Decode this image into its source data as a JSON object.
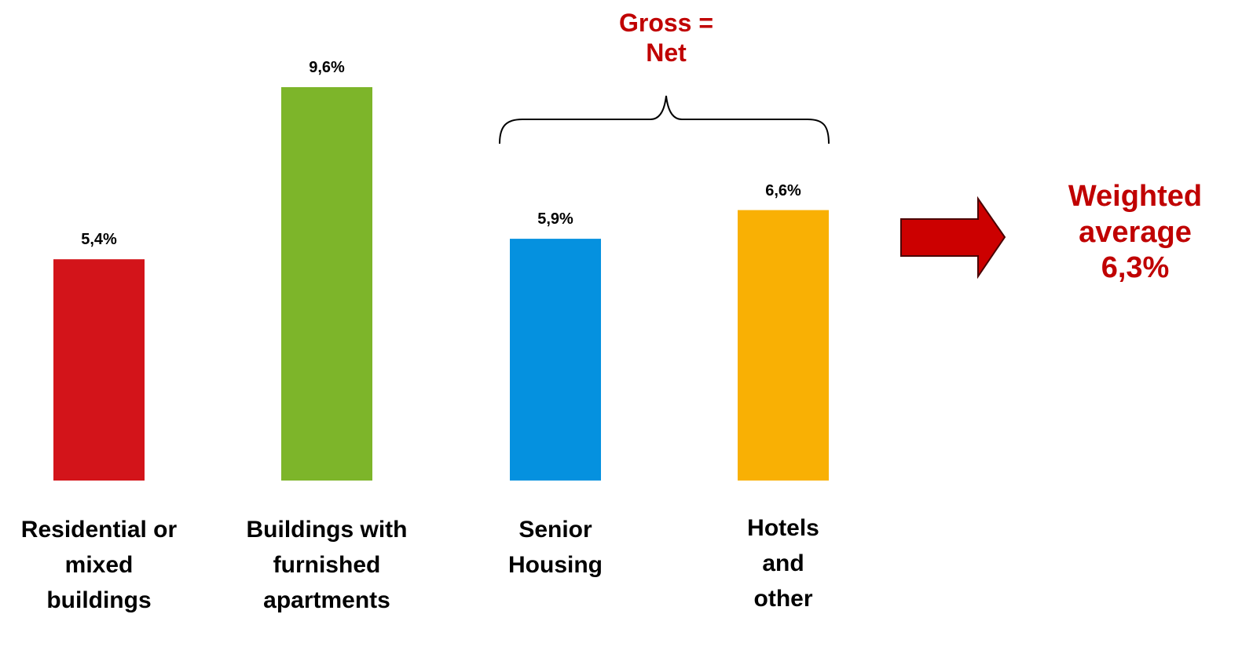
{
  "chart_data": {
    "type": "bar",
    "categories": [
      "Residential or mixed buildings",
      "Buildings with furnished apartments",
      "Senior Housing",
      "Hotels and other"
    ],
    "values": [
      5.4,
      9.6,
      5.9,
      6.6
    ],
    "value_labels": [
      "5,4%",
      "9,6%",
      "5,9%",
      "6,6%"
    ],
    "colors": [
      "#d3141a",
      "#7db52a",
      "#0591df",
      "#f9b004"
    ],
    "annotations": [
      "Gross = Net",
      "Weighted average 6,3%"
    ]
  }
}
